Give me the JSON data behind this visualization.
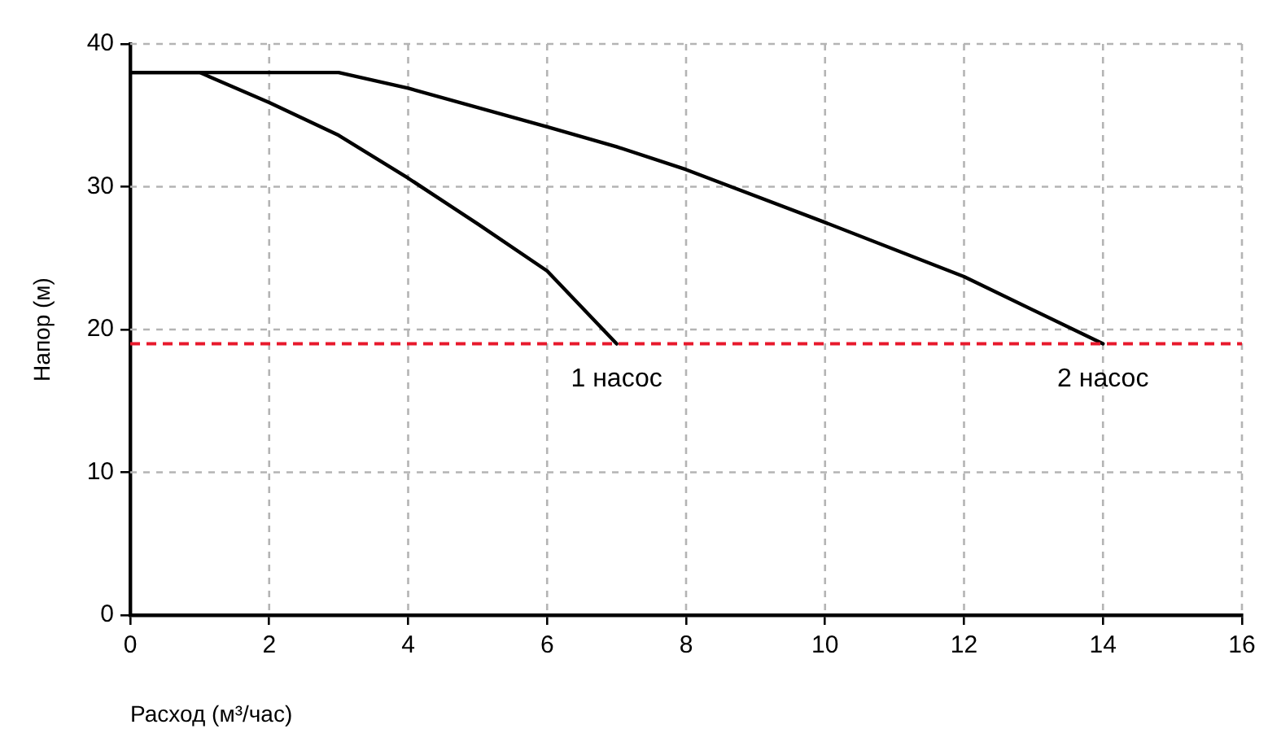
{
  "chart_data": {
    "type": "line",
    "xlabel": "Расход (м³/час)",
    "ylabel": "Напор (м)",
    "xlim": [
      0,
      16
    ],
    "xticks": [
      0,
      2,
      4,
      6,
      8,
      10,
      12,
      14,
      16
    ],
    "ylim": [
      0,
      40
    ],
    "yticks": [
      0,
      10,
      20,
      30,
      40
    ],
    "grid": true,
    "marker": "none",
    "line_style": "solid",
    "series": [
      {
        "color": "#000000",
        "x": [
          0,
          1,
          2,
          3,
          4,
          5,
          6,
          7
        ],
        "values": [
          38,
          38,
          35.9,
          33.6,
          30.6,
          27.4,
          24.1,
          19
        ]
      },
      {
        "color": "#000000",
        "x": [
          0,
          3,
          4,
          6,
          7,
          8,
          10,
          12,
          14
        ],
        "values": [
          38,
          38,
          36.9,
          34.2,
          32.8,
          31.2,
          27.5,
          23.7,
          19
        ]
      }
    ],
    "ref_lines": [
      {
        "axis": "y",
        "value": 19,
        "color": "#e8192c",
        "line_style": "dashed"
      }
    ],
    "annotations": [
      {
        "text": "1 насос",
        "x": 7,
        "y": 19
      },
      {
        "text": "2 насос",
        "x": 14,
        "y": 19
      }
    ]
  }
}
